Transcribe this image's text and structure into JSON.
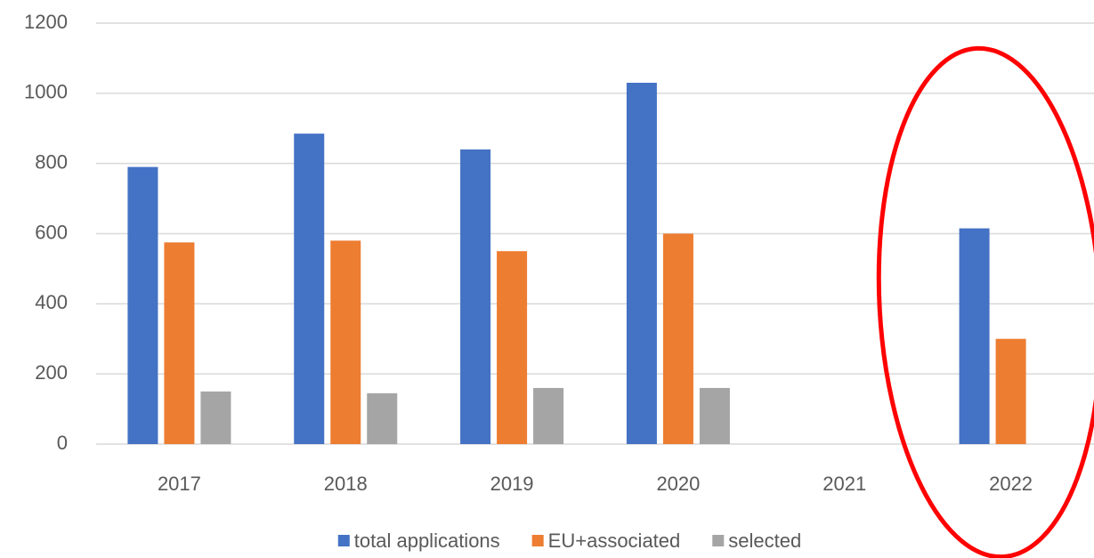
{
  "chart_data": {
    "type": "bar",
    "categories": [
      "2017",
      "2018",
      "2019",
      "2020",
      "2021",
      "2022"
    ],
    "series": [
      {
        "name": "total applications",
        "color": "#4472c4",
        "values": [
          790,
          885,
          840,
          1030,
          null,
          615
        ]
      },
      {
        "name": "EU+associated",
        "color": "#ed7d31",
        "values": [
          575,
          580,
          550,
          600,
          null,
          300
        ]
      },
      {
        "name": "selected",
        "color": "#a5a5a5",
        "values": [
          150,
          145,
          160,
          160,
          null,
          null
        ]
      }
    ],
    "ylim": [
      0,
      1200
    ],
    "yticks": [
      0,
      200,
      400,
      600,
      800,
      1000,
      1200
    ],
    "grid": true,
    "legend": "bottom"
  }
}
